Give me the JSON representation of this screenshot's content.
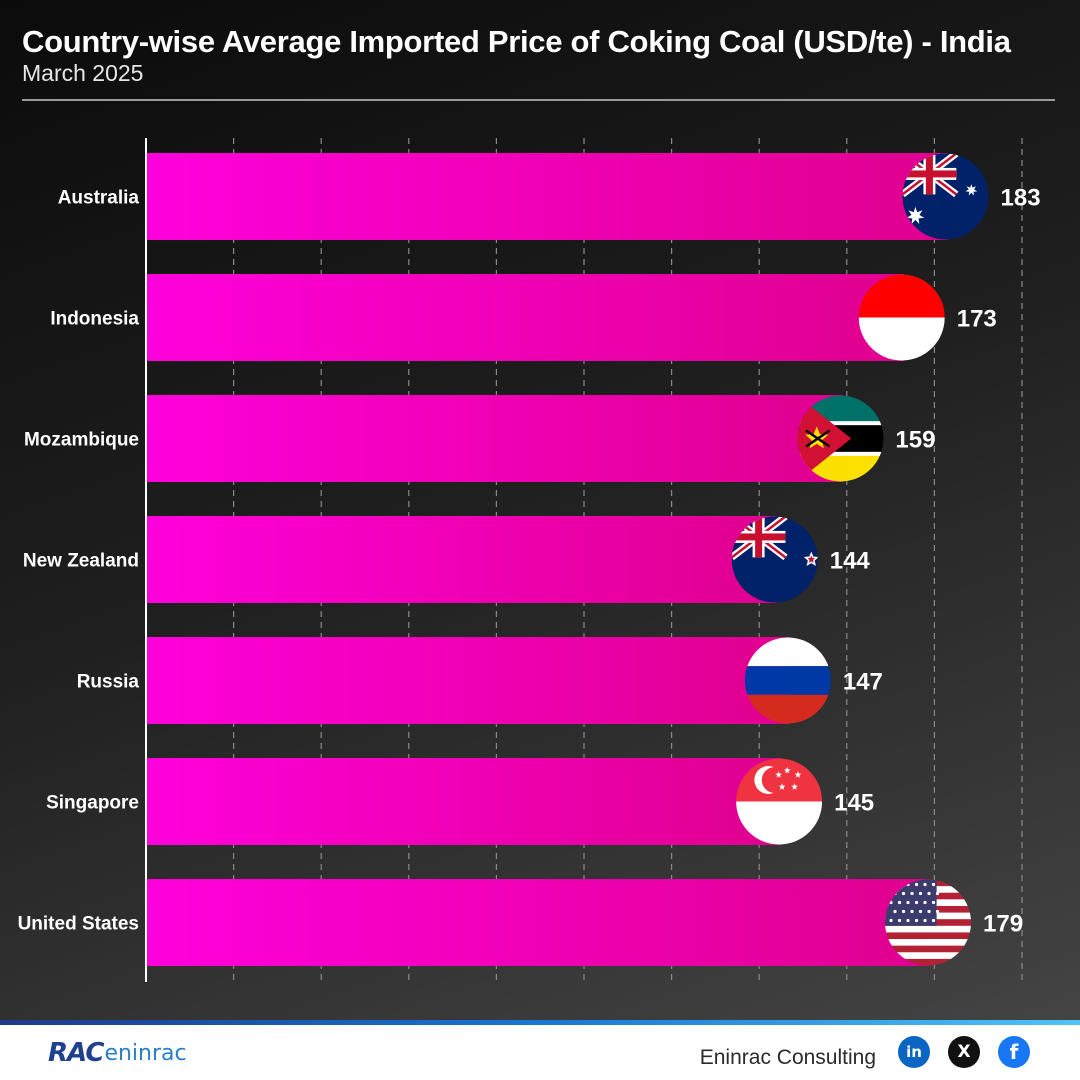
{
  "header": {
    "title": "Country-wise Average Imported Price of Coking Coal (USD/te) - India",
    "subtitle": "March 2025"
  },
  "chart_data": {
    "type": "bar",
    "orientation": "horizontal",
    "title": "Country-wise Average Imported Price of Coking Coal (USD/te) - India",
    "subtitle": "March 2025",
    "categories": [
      "Australia",
      "Indonesia",
      "Mozambique",
      "New Zealand",
      "Russia",
      "Singapore",
      "United States"
    ],
    "values": [
      183,
      173,
      159,
      144,
      147,
      145,
      179
    ],
    "flags": [
      "australia-flag",
      "indonesia-flag",
      "mozambique-flag",
      "new-zealand-flag",
      "russia-flag",
      "singapore-flag",
      "united-states-flag"
    ],
    "xlim": [
      0,
      200
    ],
    "grid": "vertical dashed",
    "legend": "none",
    "bar_color": "#ff00dc",
    "bar_color_end": "#e0008e"
  },
  "footer": {
    "logo_rac": "RAC",
    "logo_eninrac": "eninrac",
    "brand": "Eninrac Consulting",
    "social": [
      "linkedin-icon",
      "x-icon",
      "facebook-icon"
    ],
    "linkedin_label": "in",
    "x_label": "X",
    "facebook_label": "f"
  }
}
